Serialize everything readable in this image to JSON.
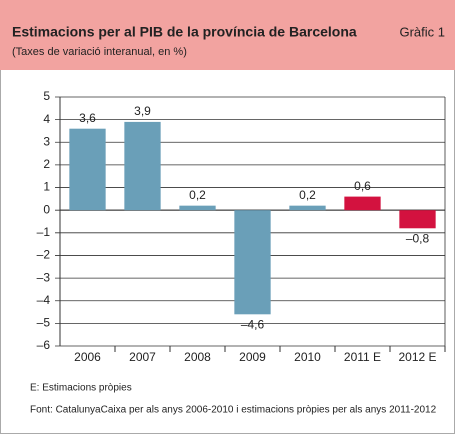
{
  "chart_data": {
    "type": "bar",
    "title": "Estimacions per al PIB de la província de Barcelona",
    "chart_label": "Gràfic 1",
    "subtitle": "(Taxes de variació interanual, en %)",
    "categories": [
      "2006",
      "2007",
      "2008",
      "2009",
      "2010",
      "2011 E",
      "2012 E"
    ],
    "values": [
      3.6,
      3.9,
      0.2,
      -4.6,
      0.2,
      0.6,
      -0.8
    ],
    "value_labels": [
      "3,6",
      "3,9",
      "0,2",
      "–4,6",
      "0,2",
      "0,6",
      "–0,8"
    ],
    "colors": [
      "#6a9fb8",
      "#6a9fb8",
      "#6a9fb8",
      "#6a9fb8",
      "#6a9fb8",
      "#d3123f",
      "#d3123f"
    ],
    "ylim": [
      -6,
      5
    ],
    "yticks": [
      5,
      4,
      3,
      2,
      1,
      0,
      {
        "value": -1,
        "label": "–1"
      },
      {
        "value": -2,
        "label": "–2"
      },
      {
        "value": -3,
        "label": "–3"
      },
      {
        "value": -4,
        "label": "–4"
      },
      {
        "value": -5,
        "label": "–5"
      },
      {
        "value": -6,
        "label": "–6"
      }
    ],
    "grid": true,
    "notes": [
      "E: Estimacions pròpies",
      "Font: CatalunyaCaixa per als anys 2006-2010 i estimacions pròpies per als anys 2011-2012"
    ]
  }
}
